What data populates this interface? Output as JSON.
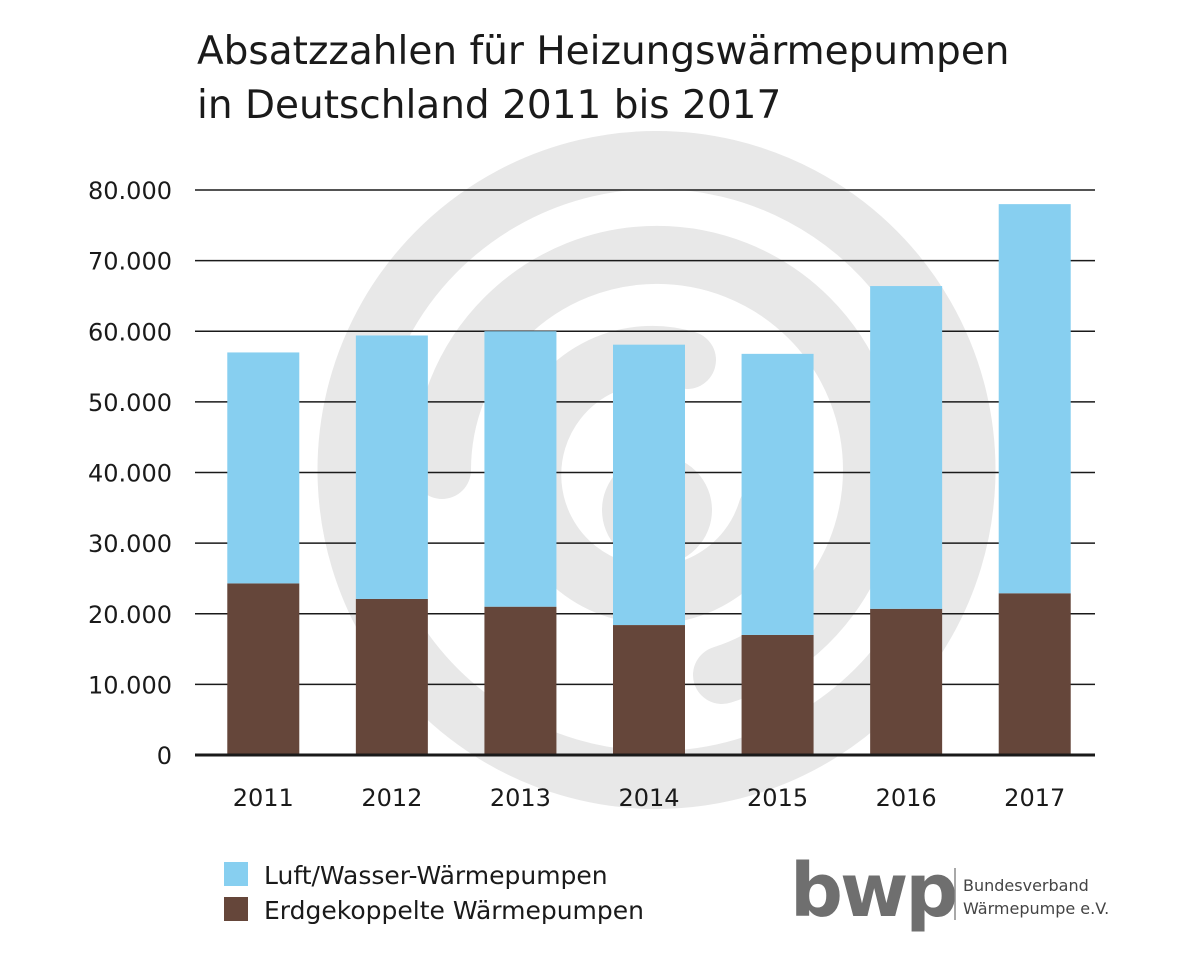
{
  "chart_data": {
    "type": "bar",
    "stacked": true,
    "title_lines": [
      "Absatzzahlen für Heizungswärmepumpen",
      "in Deutschland 2011 bis 2017"
    ],
    "categories": [
      "2011",
      "2012",
      "2013",
      "2014",
      "2015",
      "2016",
      "2017"
    ],
    "series": [
      {
        "name": "Erdgekoppelte Wärmepumpen",
        "color": "#65463a",
        "values": [
          24300,
          22100,
          21000,
          18400,
          17000,
          20700,
          22900
        ]
      },
      {
        "name": "Luft/Wasser-Wärmepumpen",
        "color": "#87cff0",
        "values": [
          32700,
          37300,
          39000,
          39700,
          39800,
          45700,
          55100
        ]
      }
    ],
    "yticks": [
      "0",
      "10.000",
      "20.000",
      "30.000",
      "40.000",
      "50.000",
      "60.000",
      "70.000",
      "80.000"
    ],
    "ylim": [
      0,
      80000
    ],
    "grid": true,
    "legend_position": "bottom-left"
  },
  "legend": {
    "items": [
      {
        "label": "Luft/Wasser-Wärmepumpen",
        "color": "#87cff0"
      },
      {
        "label": "Erdgekoppelte Wärmepumpen",
        "color": "#65463a"
      }
    ]
  },
  "logo": {
    "mark": "bwp",
    "line1": "Bundesverband",
    "line2": "Wärmepumpe e.V."
  }
}
